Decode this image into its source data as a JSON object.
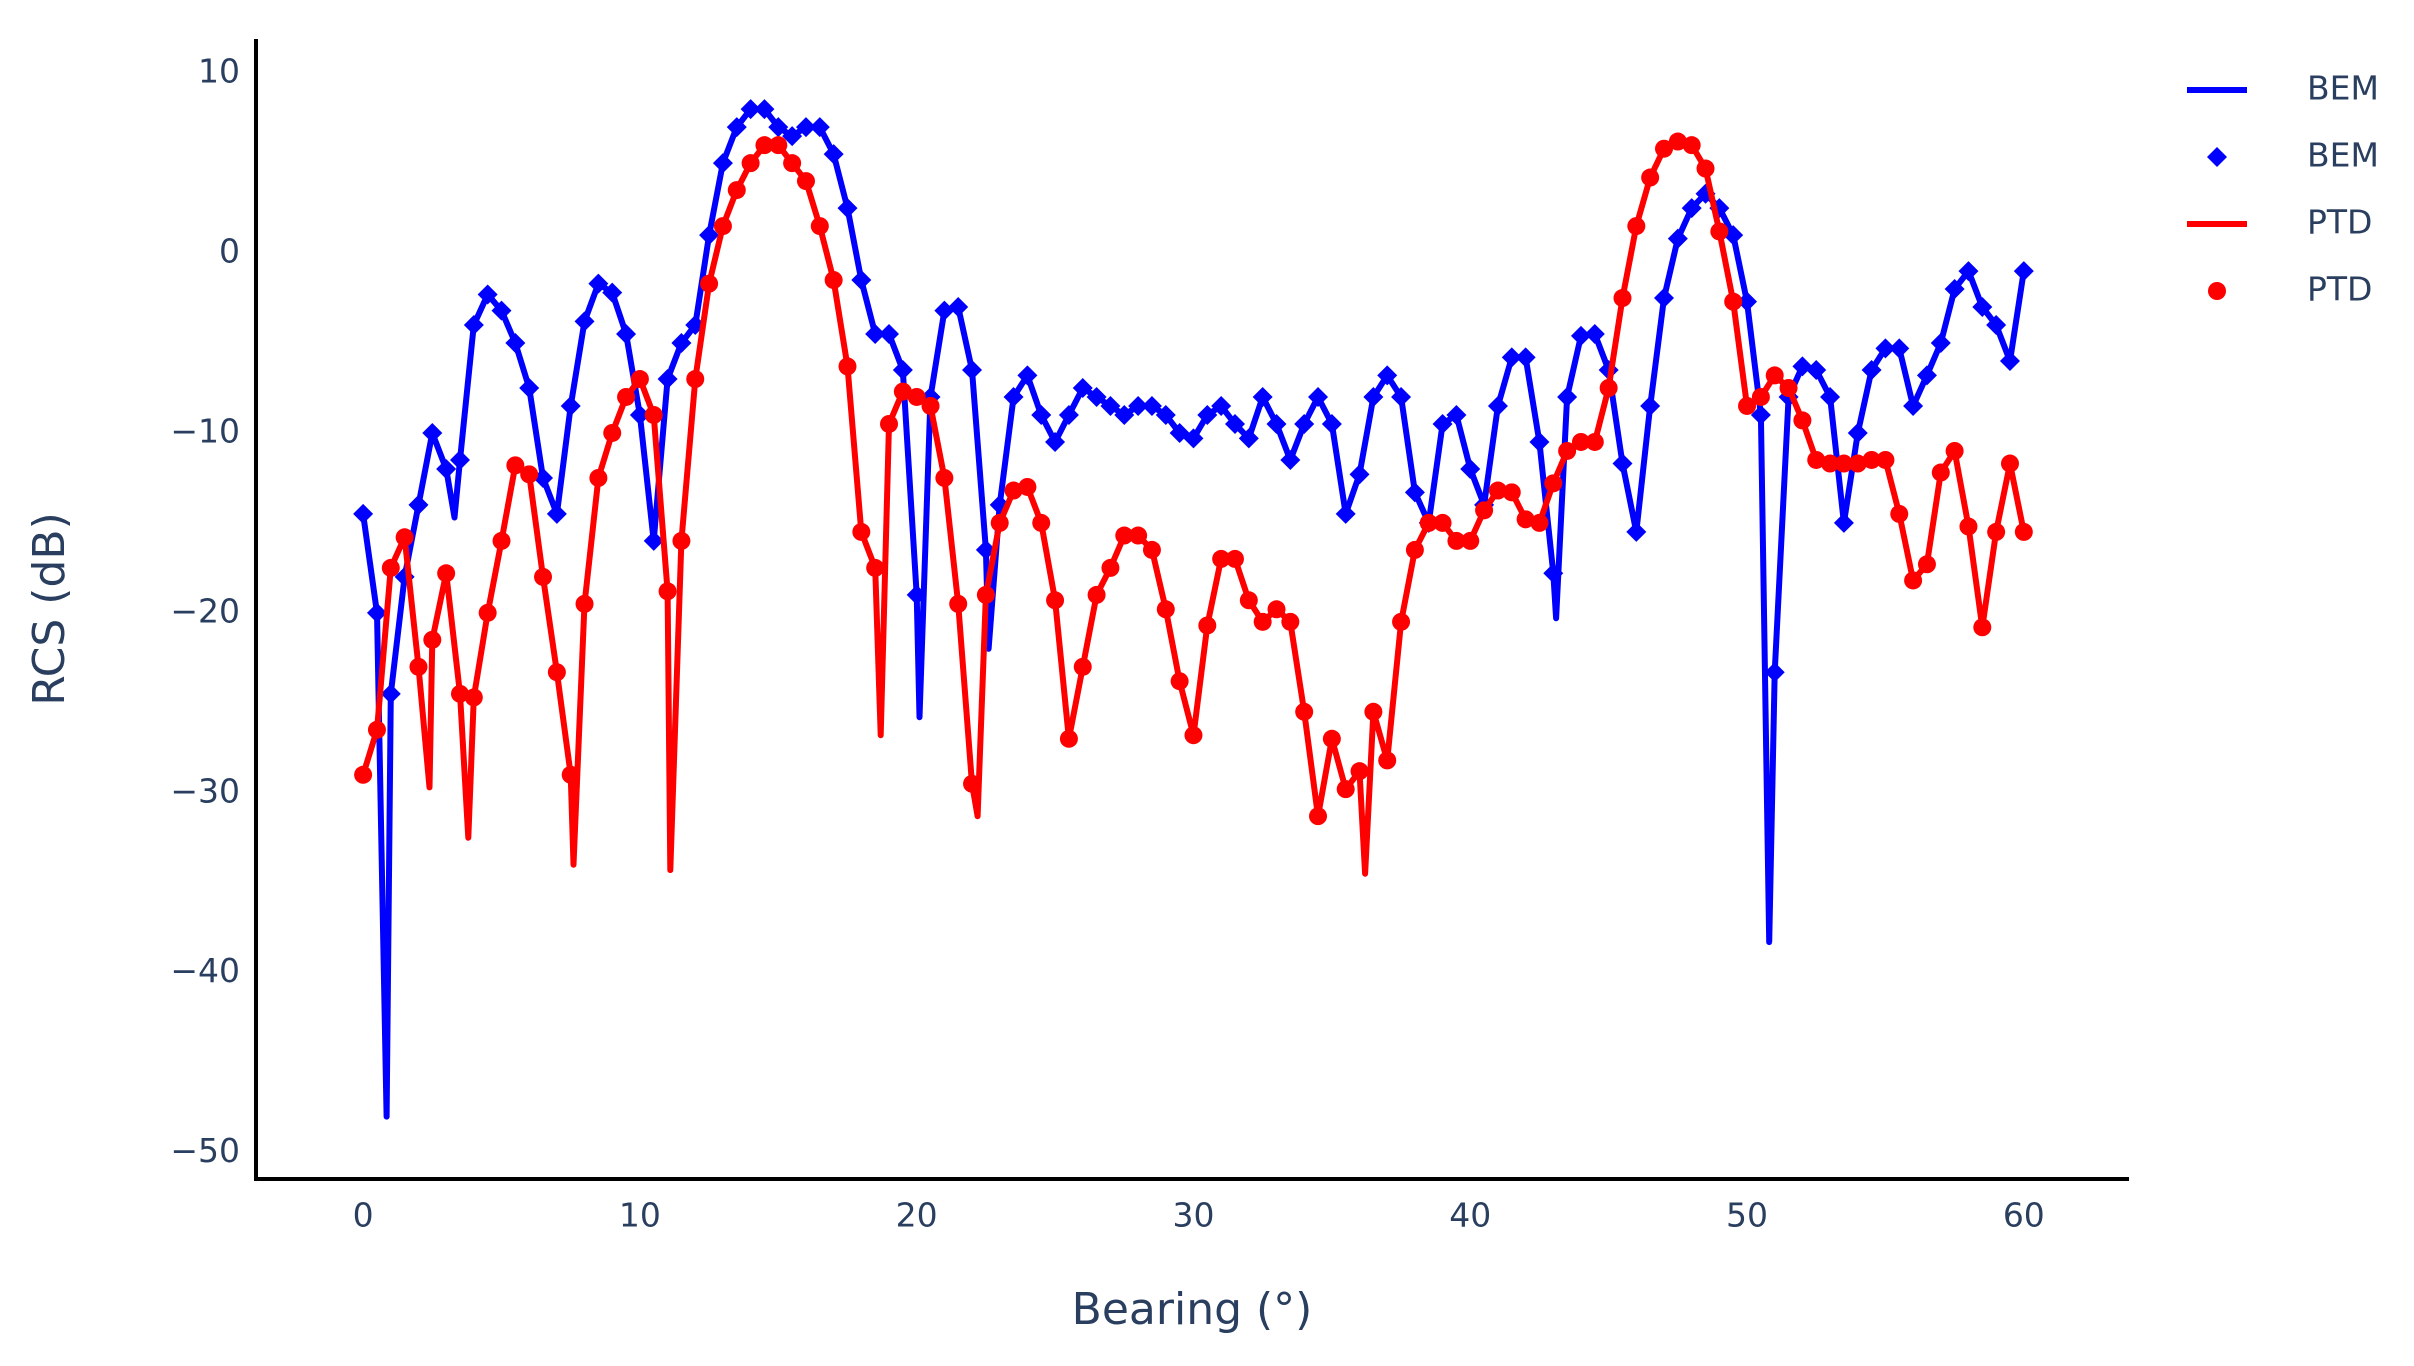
{
  "chart_data": {
    "type": "line",
    "xlabel": "Bearing (°)",
    "ylabel": "RCS (dB)",
    "xlim": [
      -3.87,
      63.8
    ],
    "ylim": [
      -51.47,
      11.9
    ],
    "xticks": [
      0,
      10,
      20,
      30,
      40,
      50,
      60
    ],
    "yticks": [
      {
        "value": -50,
        "label": "−50"
      },
      {
        "value": -40,
        "label": "−40"
      },
      {
        "value": -30,
        "label": "−30"
      },
      {
        "value": -20,
        "label": "−20"
      },
      {
        "value": -10,
        "label": "−10"
      },
      0,
      10
    ],
    "grid": false,
    "legend": "top-right",
    "x": [
      0,
      0.5,
      1,
      1.5,
      2,
      2.5,
      3,
      3.5,
      4,
      4.5,
      5,
      5.5,
      6,
      6.5,
      7,
      7.5,
      8,
      8.5,
      9,
      9.5,
      10,
      10.5,
      11,
      11.5,
      12,
      12.5,
      13,
      13.5,
      14,
      14.5,
      15,
      15.5,
      16,
      16.5,
      17,
      17.5,
      18,
      18.5,
      19,
      19.5,
      20,
      20.5,
      21,
      21.5,
      22,
      22.5,
      23,
      23.5,
      24,
      24.5,
      25,
      25.5,
      26,
      26.5,
      27,
      27.5,
      28,
      28.5,
      29,
      29.5,
      30,
      30.5,
      31,
      31.5,
      32,
      32.5,
      33,
      33.5,
      34,
      34.5,
      35,
      35.5,
      36,
      36.5,
      37,
      37.5,
      38,
      38.5,
      39,
      39.5,
      40,
      40.5,
      41,
      41.5,
      42,
      42.5,
      43,
      43.5,
      44,
      44.5,
      45,
      45.5,
      46,
      46.5,
      47,
      47.5,
      48,
      48.5,
      49,
      49.5,
      50,
      50.5,
      51,
      51.5,
      52,
      52.5,
      53,
      53.5,
      54,
      54.5,
      55,
      55.5,
      56,
      56.5,
      57,
      57.5,
      58,
      58.5,
      59,
      59.5,
      60
    ],
    "series": [
      {
        "name": "BEM",
        "mode": "lines",
        "color": "#0000ff",
        "x": [
          0,
          0.5,
          0.85,
          1,
          1.5,
          2,
          2.5,
          3,
          3.3,
          3.5,
          4,
          4.5,
          5,
          5.5,
          6,
          6.5,
          7,
          7.5,
          8,
          8.5,
          9,
          9.5,
          10,
          10.5,
          11,
          11.5,
          12,
          12.5,
          13,
          13.5,
          14,
          14.5,
          15,
          15.5,
          16,
          16.5,
          17,
          17.5,
          18,
          18.5,
          19,
          19.5,
          20,
          20.1,
          20.5,
          21,
          21.5,
          22,
          22.5,
          22.6,
          23,
          23.5,
          24,
          24.5,
          25,
          25.5,
          26,
          26.5,
          27,
          27.5,
          28,
          28.5,
          29,
          29.5,
          30,
          30.5,
          31,
          31.5,
          32,
          32.5,
          33,
          33.5,
          34,
          34.5,
          35,
          35.5,
          36,
          36.5,
          37,
          37.5,
          38,
          38.5,
          39,
          39.5,
          40,
          40.5,
          41,
          41.5,
          42,
          42.5,
          43,
          43.1,
          43.5,
          44,
          44.5,
          45,
          45.5,
          46,
          46.5,
          47,
          47.5,
          48,
          48.5,
          49,
          49.5,
          50,
          50.5,
          50.8,
          51,
          51.5,
          52,
          52.5,
          53,
          53.5,
          54,
          54.5,
          55,
          55.5,
          56,
          56.5,
          57,
          57.5,
          58,
          58.5,
          59,
          59.5,
          60
        ],
        "values": [
          -14.5,
          -20,
          -48,
          -24.5,
          -18,
          -14,
          -10,
          -12,
          -14.7,
          -11.5,
          -4,
          -2.3,
          -3.2,
          -5,
          -7.5,
          -12.5,
          -14.5,
          -8.5,
          -3.8,
          -1.7,
          -2.2,
          -4.5,
          -9,
          -16,
          -7,
          -5,
          -4,
          1,
          5,
          7,
          8,
          8,
          7,
          6.5,
          7,
          7,
          5.5,
          2.5,
          -1.5,
          -4.5,
          -4.5,
          -6.5,
          -19,
          -25.8,
          -8,
          -3.2,
          -3,
          -6.5,
          -16.5,
          -22,
          -14,
          -8,
          -6.8,
          -9,
          -10.5,
          -9,
          -7.5,
          -8,
          -8.5,
          -9,
          -8.5,
          -8.5,
          -9,
          -10,
          -10.3,
          -9,
          -8.5,
          -9.5,
          -10.3,
          -8,
          -9.5,
          -11.5,
          -9.5,
          -8,
          -9.5,
          -14.5,
          -12.3,
          -8,
          -6.8,
          -8,
          -13.3,
          -15,
          -9.5,
          -9,
          -12,
          -14,
          -8.5,
          -5.8,
          -5.8,
          -10.5,
          -17.8,
          -20.3,
          -8,
          -4.6,
          -4.5,
          -6.5,
          -11.7,
          -15.5,
          -8.5,
          -2.5,
          0.8,
          2.5,
          3.3,
          2.5,
          1,
          -2.7,
          -9,
          -38.3,
          -23.3,
          -8,
          -6.3,
          -6.5,
          -8,
          -15,
          -10,
          -6.5,
          -5.3,
          -5.3,
          -8.5,
          -6.8,
          -5,
          -2,
          -1,
          -3,
          -4,
          -6,
          -1
        ]
      },
      {
        "name": "BEM",
        "mode": "markers",
        "marker": "diamond",
        "color": "#0000ff",
        "values": [
          -14.5,
          -20,
          -24.5,
          -18,
          -14,
          -10,
          -12,
          -11.5,
          -4,
          -2.3,
          -3.2,
          -5,
          -7.5,
          -12.5,
          -14.5,
          -8.5,
          -3.8,
          -1.7,
          -2.2,
          -4.5,
          -9,
          -16,
          -7,
          -5,
          -4,
          1,
          5,
          7,
          8,
          8,
          7,
          6.5,
          7,
          7,
          5.5,
          2.5,
          -1.5,
          -4.5,
          -4.5,
          -6.5,
          -19,
          -8,
          -3.2,
          -3,
          -6.5,
          -16.5,
          -14,
          -8,
          -6.8,
          -9,
          -10.5,
          -9,
          -7.5,
          -8,
          -8.5,
          -9,
          -8.5,
          -8.5,
          -9,
          -10,
          -10.3,
          -9,
          -8.5,
          -9.5,
          -10.3,
          -8,
          -9.5,
          -11.5,
          -9.5,
          -8,
          -9.5,
          -14.5,
          -12.3,
          -8,
          -6.8,
          -8,
          -13.3,
          -15,
          -9.5,
          -9,
          -12,
          -14,
          -8.5,
          -5.8,
          -5.8,
          -10.5,
          -17.8,
          -8,
          -4.6,
          -4.5,
          -6.5,
          -11.7,
          -15.5,
          -8.5,
          -2.5,
          0.8,
          2.5,
          3.3,
          2.5,
          1,
          -2.7,
          -9,
          -23.3,
          -8,
          -6.3,
          -6.5,
          -8,
          -15,
          -10,
          -6.5,
          -5.3,
          -5.3,
          -8.5,
          -6.8,
          -5,
          -2,
          -1,
          -3,
          -4,
          -6,
          -1
        ]
      },
      {
        "name": "PTD",
        "mode": "lines",
        "color": "#ff0000",
        "x": [
          0,
          0.5,
          1,
          1.5,
          2,
          2.4,
          2.5,
          3,
          3.5,
          3.8,
          4,
          4.5,
          5,
          5.5,
          6,
          6.5,
          7,
          7.5,
          7.6,
          8,
          8.5,
          9,
          9.5,
          10,
          10.5,
          11,
          11.1,
          11.5,
          12,
          12.5,
          13,
          13.5,
          14,
          14.5,
          15,
          15.5,
          16,
          16.5,
          17,
          17.5,
          18,
          18.5,
          18.7,
          19,
          19.5,
          20,
          20.5,
          21,
          21.5,
          22,
          22.2,
          22.5,
          23,
          23.5,
          24,
          24.5,
          25,
          25.5,
          26,
          26.5,
          27,
          27.5,
          28,
          28.5,
          29,
          29.5,
          30,
          30.5,
          31,
          31.5,
          32,
          32.5,
          33,
          33.5,
          34,
          34.5,
          35,
          35.5,
          36,
          36.2,
          36.5,
          37,
          37.5,
          38,
          38.5,
          39,
          39.5,
          40,
          40.5,
          41,
          41.5,
          42,
          42.5,
          43,
          43.5,
          44,
          44.5,
          45,
          45.5,
          46,
          46.5,
          47,
          47.5,
          48,
          48.5,
          49,
          49.5,
          50,
          50.5,
          51,
          51.5,
          52,
          52.5,
          53,
          53.5,
          54,
          54.5,
          55,
          55.5,
          56,
          56.5,
          57,
          57.5,
          58,
          58.5,
          59,
          59.5,
          60
        ],
        "values": [
          -29,
          -26.5,
          -17.5,
          -15.8,
          -23,
          -29.7,
          -21.5,
          -17.8,
          -24.5,
          -32.5,
          -24.7,
          -20,
          -16,
          -11.8,
          -12.3,
          -18,
          -23.3,
          -29,
          -34,
          -19.5,
          -12.5,
          -10,
          -8,
          -7,
          -9,
          -18.8,
          -34.3,
          -16,
          -7,
          -1.7,
          1.5,
          3.5,
          5,
          6,
          6,
          5,
          4,
          1.5,
          -1.5,
          -6.3,
          -15.5,
          -17.5,
          -26.8,
          -9.5,
          -7.7,
          -8,
          -8.5,
          -12.5,
          -19.5,
          -29.5,
          -31.3,
          -19,
          -15,
          -13.2,
          -13,
          -15,
          -19.3,
          -27,
          -23,
          -19,
          -17.5,
          -15.7,
          -15.7,
          -16.5,
          -19.8,
          -23.8,
          -26.8,
          -20.7,
          -17,
          -17,
          -19.3,
          -20.5,
          -19.8,
          -20.5,
          -25.5,
          -31.3,
          -27,
          -29.8,
          -28.8,
          -34.5,
          -25.5,
          -28.2,
          -20.5,
          -16.5,
          -15,
          -15,
          -16,
          -16,
          -14.3,
          -13.2,
          -13.3,
          -14.8,
          -15,
          -12.8,
          -11,
          -10.5,
          -10.5,
          -7.5,
          -2.5,
          1.5,
          4.2,
          5.8,
          6.2,
          6,
          4.7,
          1.2,
          -2.7,
          -8.5,
          -8,
          -6.8,
          -7.5,
          -9.3,
          -11.5,
          -11.7,
          -11.7,
          -11.7,
          -11.5,
          -11.5,
          -14.5,
          -18.2,
          -17.3,
          -12.2,
          -11,
          -15.2,
          -20.8,
          -15.5,
          -11.7,
          -15.5
        ]
      },
      {
        "name": "PTD",
        "mode": "markers",
        "marker": "circle",
        "color": "#ff0000",
        "values": [
          -29,
          -26.5,
          -17.5,
          -15.8,
          -23,
          -21.5,
          -17.8,
          -24.5,
          -24.7,
          -20,
          -16,
          -11.8,
          -12.3,
          -18,
          -23.3,
          -29,
          -19.5,
          -12.5,
          -10,
          -8,
          -7,
          -9,
          -18.8,
          -16,
          -7,
          -1.7,
          1.5,
          3.5,
          5,
          6,
          6,
          5,
          4,
          1.5,
          -1.5,
          -6.3,
          -15.5,
          -17.5,
          -9.5,
          -7.7,
          -8,
          -8.5,
          -12.5,
          -19.5,
          -29.5,
          -19,
          -15,
          -13.2,
          -13,
          -15,
          -19.3,
          -27,
          -23,
          -19,
          -17.5,
          -15.7,
          -15.7,
          -16.5,
          -19.8,
          -23.8,
          -26.8,
          -20.7,
          -17,
          -17,
          -19.3,
          -20.5,
          -19.8,
          -20.5,
          -25.5,
          -31.3,
          -27,
          -29.8,
          -28.8,
          -25.5,
          -28.2,
          -20.5,
          -16.5,
          -15,
          -15,
          -16,
          -16,
          -14.3,
          -13.2,
          -13.3,
          -14.8,
          -15,
          -12.8,
          -11,
          -10.5,
          -10.5,
          -7.5,
          -2.5,
          1.5,
          4.2,
          5.8,
          6.2,
          6,
          4.7,
          1.2,
          -2.7,
          -8.5,
          -8,
          -6.8,
          -7.5,
          -9.3,
          -11.5,
          -11.7,
          -11.7,
          -11.7,
          -11.5,
          -11.5,
          -14.5,
          -18.2,
          -17.3,
          -12.2,
          -11,
          -15.2,
          -20.8,
          -15.5,
          -11.7,
          -15.5
        ]
      }
    ]
  }
}
